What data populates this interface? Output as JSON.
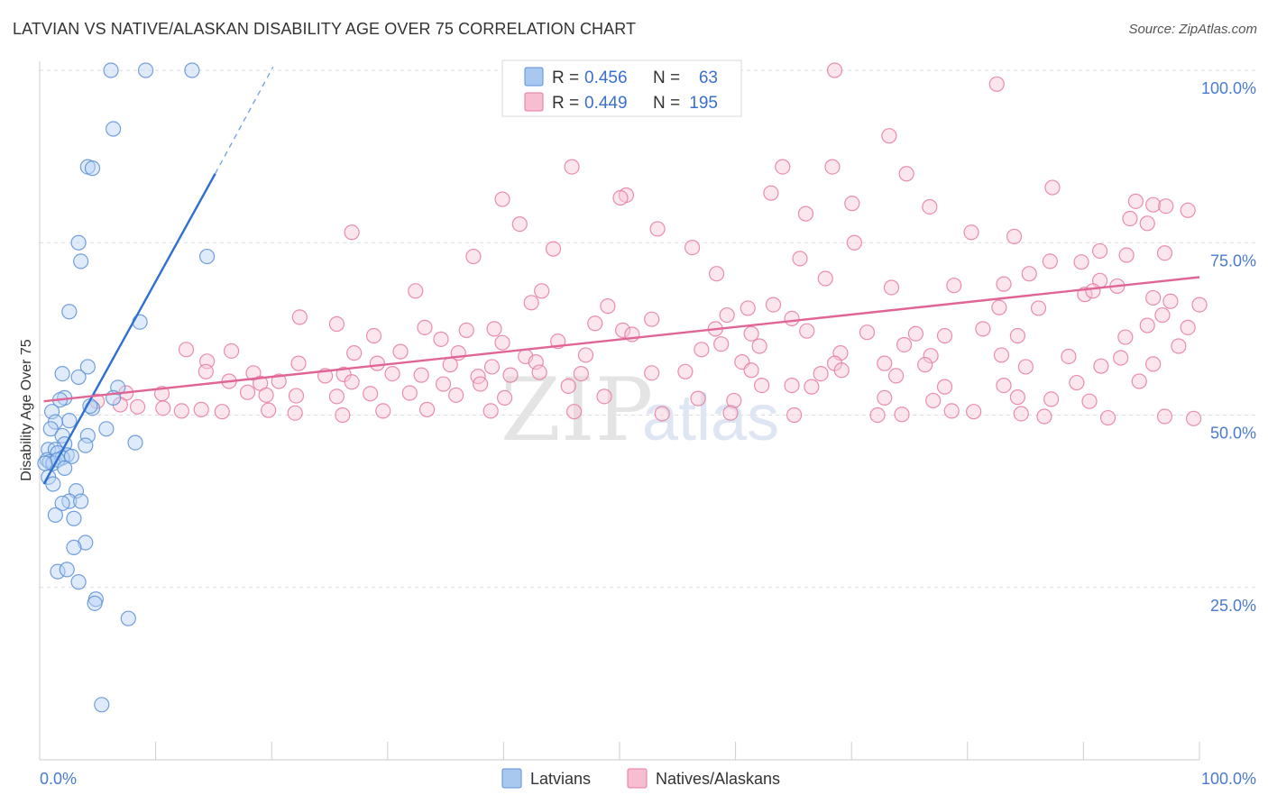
{
  "header": {
    "title": "LATVIAN VS NATIVE/ALASKAN DISABILITY AGE OVER 75 CORRELATION CHART",
    "source": "Source: ZipAtlas.com"
  },
  "watermark": {
    "part1": "ZIP",
    "part2": "atlas"
  },
  "legend": {
    "rows": [
      {
        "r_label": "R = ",
        "r_value": "0.456",
        "n_label": "N = ",
        "n_value": "63",
        "color": "#a9c8f0",
        "stroke": "#5b8fd6"
      },
      {
        "r_label": "R = ",
        "r_value": "0.449",
        "n_label": "N = ",
        "n_value": "195",
        "color": "#f7bdd0",
        "stroke": "#e57aa0"
      }
    ]
  },
  "bottom_legend": {
    "items": [
      "Latvians",
      "Natives/Alaskans"
    ]
  },
  "chart_data": {
    "type": "scatter",
    "title": "LATVIAN VS NATIVE/ALASKAN DISABILITY AGE OVER 75 CORRELATION CHART",
    "xlabel": "",
    "ylabel": "Disability Age Over 75",
    "xlim": [
      0,
      100
    ],
    "ylim": [
      0,
      104
    ],
    "x_tick_labels": [
      "0.0%",
      "100.0%"
    ],
    "y_tick_labels": [
      "25.0%",
      "50.0%",
      "75.0%",
      "100.0%"
    ],
    "y_ticks": [
      25,
      50,
      75,
      100
    ],
    "grid": true,
    "legend_position": "top-center",
    "series": [
      {
        "name": "Latvians",
        "color": "#5b8fd6",
        "fill": "#b9d3f3",
        "trend": {
          "x": [
            0.2,
            15.0
          ],
          "y": [
            40.0,
            85.0
          ],
          "dashed_to": [
            20.0,
            100.5
          ]
        },
        "points": [
          [
            6,
            100
          ],
          [
            9,
            100
          ],
          [
            13,
            100
          ],
          [
            6.2,
            91.5
          ],
          [
            4,
            86
          ],
          [
            4.4,
            85.8
          ],
          [
            3.2,
            75
          ],
          [
            3.4,
            72.3
          ],
          [
            14.3,
            73
          ],
          [
            2.4,
            65
          ],
          [
            8.5,
            63.5
          ],
          [
            4,
            57
          ],
          [
            1.8,
            56
          ],
          [
            3.2,
            55.5
          ],
          [
            6.6,
            54
          ],
          [
            6.2,
            52.5
          ],
          [
            2,
            52.5
          ],
          [
            1.6,
            52.2
          ],
          [
            4.4,
            51
          ],
          [
            0.9,
            50.5
          ],
          [
            4.2,
            51.3
          ],
          [
            2.4,
            49.2
          ],
          [
            1.2,
            49
          ],
          [
            0.8,
            48
          ],
          [
            5.6,
            48
          ],
          [
            1.8,
            47
          ],
          [
            4,
            47
          ],
          [
            8.1,
            46
          ],
          [
            2,
            45.8
          ],
          [
            3.8,
            45.6
          ],
          [
            0.6,
            45
          ],
          [
            1.2,
            45
          ],
          [
            1.4,
            44.5
          ],
          [
            2.2,
            44.2
          ],
          [
            1.8,
            43.8
          ],
          [
            2.6,
            44
          ],
          [
            0.5,
            43.5
          ],
          [
            0.7,
            43.2
          ],
          [
            1,
            43
          ],
          [
            1.4,
            43.5
          ],
          [
            0.3,
            43
          ],
          [
            2,
            42.3
          ],
          [
            0.6,
            41
          ],
          [
            1,
            40
          ],
          [
            3,
            39
          ],
          [
            2.4,
            37.5
          ],
          [
            3.4,
            37.5
          ],
          [
            1.8,
            37.2
          ],
          [
            1.2,
            35.5
          ],
          [
            2.8,
            35
          ],
          [
            3.8,
            31.5
          ],
          [
            2.8,
            30.8
          ],
          [
            1.4,
            27.3
          ],
          [
            2.2,
            27.6
          ],
          [
            3.2,
            25.8
          ],
          [
            4.7,
            23.3
          ],
          [
            4.6,
            22.7
          ],
          [
            7.5,
            20.5
          ],
          [
            5.2,
            8
          ]
        ]
      },
      {
        "name": "Natives/Alaskans",
        "color": "#e57aa0",
        "fill": "#f8c8d8",
        "trend": {
          "x": [
            0.2,
            100.0
          ],
          "y": [
            52.0,
            70.0
          ]
        },
        "points": [
          [
            68.5,
            100
          ],
          [
            82.5,
            98
          ],
          [
            73.2,
            90.5
          ],
          [
            45.8,
            86
          ],
          [
            64,
            86
          ],
          [
            68.3,
            86
          ],
          [
            74.7,
            85
          ],
          [
            87.3,
            83
          ],
          [
            63,
            82.2
          ],
          [
            50.5,
            81.9
          ],
          [
            50,
            81.5
          ],
          [
            39.8,
            81.3
          ],
          [
            70,
            80.7
          ],
          [
            94.5,
            81
          ],
          [
            96,
            80.5
          ],
          [
            97.1,
            80.3
          ],
          [
            99,
            79.7
          ],
          [
            66,
            79.2
          ],
          [
            76.7,
            80.2
          ],
          [
            94,
            78.5
          ],
          [
            95.5,
            77.8
          ],
          [
            41.3,
            77.7
          ],
          [
            53.2,
            77
          ],
          [
            26.8,
            76.5
          ],
          [
            80.3,
            76.5
          ],
          [
            84,
            75.9
          ],
          [
            70.2,
            75
          ],
          [
            44.2,
            74.1
          ],
          [
            56.2,
            74.3
          ],
          [
            91.4,
            73.8
          ],
          [
            97,
            73.5
          ],
          [
            93.7,
            73.2
          ],
          [
            37.3,
            73
          ],
          [
            87.1,
            72.3
          ],
          [
            89.8,
            72.2
          ],
          [
            65.5,
            72.7
          ],
          [
            83.1,
            69
          ],
          [
            58.3,
            70.5
          ],
          [
            85.3,
            70.5
          ],
          [
            91.4,
            69.5
          ],
          [
            92.9,
            68.7
          ],
          [
            67.7,
            69.8
          ],
          [
            73.4,
            68.5
          ],
          [
            78.8,
            68.8
          ],
          [
            32.3,
            68
          ],
          [
            43.2,
            68
          ],
          [
            90.1,
            67.5
          ],
          [
            90.8,
            68
          ],
          [
            97.5,
            66.5
          ],
          [
            42.3,
            66.3
          ],
          [
            63.2,
            66
          ],
          [
            96,
            67
          ],
          [
            100,
            66
          ],
          [
            48.9,
            65.8
          ],
          [
            61,
            65.5
          ],
          [
            82.7,
            65.6
          ],
          [
            86.1,
            65.5
          ],
          [
            96.8,
            64.5
          ],
          [
            59.2,
            64.5
          ],
          [
            52.7,
            63.9
          ],
          [
            47.8,
            63.3
          ],
          [
            64.8,
            64
          ],
          [
            22.3,
            64.2
          ],
          [
            25.5,
            63.2
          ],
          [
            33.1,
            62.7
          ],
          [
            36.7,
            62.3
          ],
          [
            39.1,
            62.5
          ],
          [
            50.2,
            62.3
          ],
          [
            58.2,
            62.5
          ],
          [
            71.3,
            62
          ],
          [
            81.3,
            62.5
          ],
          [
            95.5,
            63
          ],
          [
            99,
            62.7
          ],
          [
            51,
            61.7
          ],
          [
            61.3,
            61.8
          ],
          [
            66.1,
            62.2
          ],
          [
            75.5,
            61.8
          ],
          [
            78,
            61.5
          ],
          [
            84.3,
            61.5
          ],
          [
            93.6,
            61.3
          ],
          [
            28.7,
            61.5
          ],
          [
            34.5,
            61
          ],
          [
            39.8,
            60.5
          ],
          [
            44.6,
            60.7
          ],
          [
            58.7,
            60.3
          ],
          [
            57,
            59.5
          ],
          [
            62,
            60
          ],
          [
            74.5,
            60.2
          ],
          [
            98.2,
            60
          ],
          [
            12.5,
            59.5
          ],
          [
            16.4,
            59.3
          ],
          [
            27,
            59
          ],
          [
            31,
            59.2
          ],
          [
            36,
            59
          ],
          [
            41.8,
            58.5
          ],
          [
            47,
            58.7
          ],
          [
            69,
            59
          ],
          [
            76.8,
            58.6
          ],
          [
            82.9,
            58.7
          ],
          [
            88.7,
            58.5
          ],
          [
            93.2,
            58.3
          ],
          [
            14.3,
            57.8
          ],
          [
            22.2,
            57.5
          ],
          [
            29,
            57.5
          ],
          [
            35.3,
            57.3
          ],
          [
            38.9,
            57
          ],
          [
            42.7,
            57.7
          ],
          [
            60.5,
            57.7
          ],
          [
            68.5,
            57.5
          ],
          [
            72.8,
            57.5
          ],
          [
            76.3,
            57.3
          ],
          [
            85,
            57
          ],
          [
            91.5,
            57.1
          ],
          [
            96,
            57.4
          ],
          [
            14.2,
            56.3
          ],
          [
            18.3,
            56.1
          ],
          [
            24.5,
            55.7
          ],
          [
            26.1,
            55.9
          ],
          [
            30.3,
            56
          ],
          [
            32.8,
            55.8
          ],
          [
            37.7,
            55.6
          ],
          [
            40.5,
            55.8
          ],
          [
            43,
            56.2
          ],
          [
            46.6,
            56
          ],
          [
            52.7,
            56.1
          ],
          [
            55.6,
            56.3
          ],
          [
            61.3,
            56.5
          ],
          [
            67.3,
            56
          ],
          [
            69.1,
            56.5
          ],
          [
            73.8,
            55.7
          ],
          [
            16.2,
            54.9
          ],
          [
            18.9,
            54.6
          ],
          [
            20.5,
            54.9
          ],
          [
            26.8,
            54.8
          ],
          [
            34.7,
            54.5
          ],
          [
            37.9,
            54.5
          ],
          [
            45.5,
            54.2
          ],
          [
            62.2,
            54.3
          ],
          [
            64.8,
            54.3
          ],
          [
            66.5,
            54.1
          ],
          [
            78,
            54.1
          ],
          [
            83.1,
            54.3
          ],
          [
            89.4,
            54.7
          ],
          [
            94.8,
            54.9
          ],
          [
            7.3,
            53.2
          ],
          [
            10.4,
            53.1
          ],
          [
            17.8,
            53.3
          ],
          [
            19.4,
            52.9
          ],
          [
            22,
            52.8
          ],
          [
            25.5,
            52.7
          ],
          [
            28.4,
            53.1
          ],
          [
            31.8,
            53.2
          ],
          [
            35.8,
            52.9
          ],
          [
            40,
            52.5
          ],
          [
            48.6,
            52.7
          ],
          [
            56.7,
            52.4
          ],
          [
            59.8,
            52.1
          ],
          [
            72.8,
            52.5
          ],
          [
            77,
            52.1
          ],
          [
            84.3,
            52.6
          ],
          [
            87.2,
            52.3
          ],
          [
            90.5,
            52
          ],
          [
            4.8,
            52
          ],
          [
            6.8,
            51.5
          ],
          [
            8.3,
            51.2
          ],
          [
            10.5,
            51
          ],
          [
            12.1,
            50.6
          ],
          [
            13.8,
            50.8
          ],
          [
            15.6,
            50.5
          ],
          [
            19.6,
            50.7
          ],
          [
            21.9,
            50.3
          ],
          [
            26,
            50
          ],
          [
            29.5,
            50.6
          ],
          [
            33.3,
            50.8
          ],
          [
            38.8,
            50.6
          ],
          [
            46,
            50.5
          ],
          [
            53.6,
            50.2
          ],
          [
            59.5,
            50.3
          ],
          [
            65,
            50
          ],
          [
            72.2,
            50
          ],
          [
            74.3,
            50.1
          ],
          [
            78.6,
            50.6
          ],
          [
            80.5,
            50.5
          ],
          [
            84.6,
            50.2
          ],
          [
            86.6,
            49.8
          ],
          [
            92.1,
            49.6
          ],
          [
            97,
            49.8
          ],
          [
            99.5,
            49.5
          ]
        ]
      }
    ]
  }
}
